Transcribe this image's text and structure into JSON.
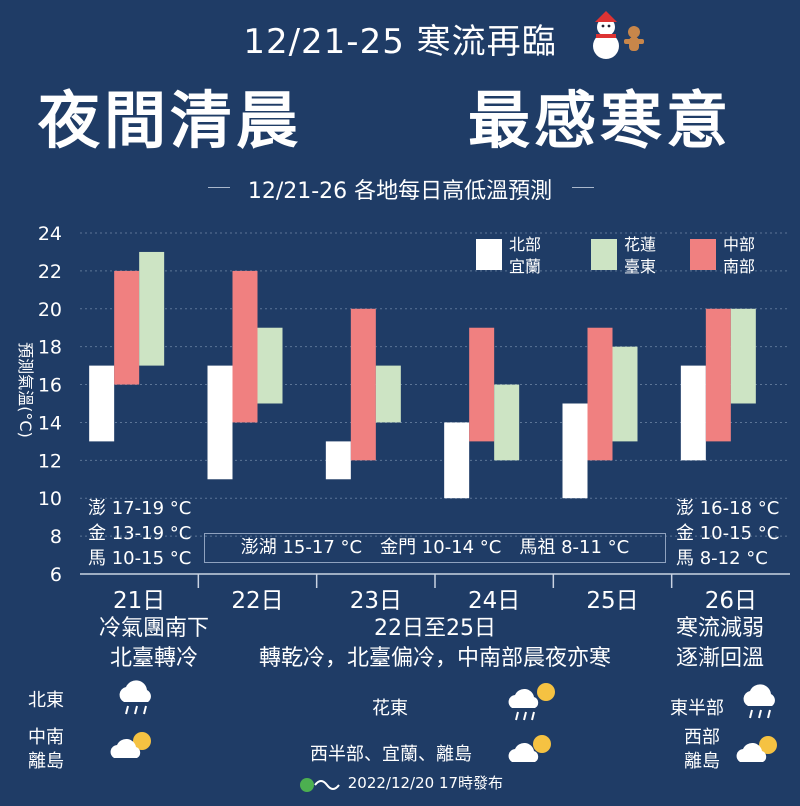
{
  "header": {
    "title": "12/21-25 寒流再臨",
    "headline_left": "夜間清晨",
    "headline_right": "最感寒意"
  },
  "chart_data": {
    "type": "bar",
    "title": "12/21-26 各地每日高低溫預測",
    "ylabel": "預測氣溫(°C)",
    "ylim": [
      6,
      24
    ],
    "yticks": [
      6,
      8,
      10,
      12,
      14,
      16,
      18,
      20,
      22,
      24
    ],
    "categories": [
      "21日",
      "22日",
      "23日",
      "24日",
      "25日",
      "26日"
    ],
    "series": [
      {
        "name": "北部宜蘭",
        "color": "#ffffff",
        "low": [
          13,
          11,
          11,
          10,
          10,
          12
        ],
        "high": [
          17,
          17,
          13,
          14,
          15,
          17
        ]
      },
      {
        "name": "中部南部",
        "color": "#f08080",
        "low": [
          16,
          14,
          12,
          13,
          12,
          13
        ],
        "high": [
          22,
          22,
          20,
          19,
          19,
          20
        ]
      },
      {
        "name": "花蓮臺東",
        "color": "#cde4c4",
        "low": [
          17,
          15,
          14,
          12,
          13,
          15
        ],
        "high": [
          23,
          19,
          17,
          16,
          18,
          20
        ]
      }
    ],
    "legend": [
      {
        "line1": "北部",
        "line2": "宜蘭",
        "color": "#ffffff"
      },
      {
        "line1": "花蓮",
        "line2": "臺東",
        "color": "#cde4c4"
      },
      {
        "line1": "中部",
        "line2": "南部",
        "color": "#f08080"
      }
    ],
    "legend_position": "top-right",
    "grid": true
  },
  "island_notes": {
    "day21": [
      "澎 17-19 °C",
      "金 13-19 °C",
      "馬 10-15 °C"
    ],
    "middle": "澎湖 15-17 °C　金門 10-14 °C　馬祖 8-11 °C",
    "day26": [
      "澎 16-18 °C",
      "金 10-15 °C",
      "馬 8-12 °C"
    ]
  },
  "periods": {
    "p1_line1": "冷氣團南下",
    "p1_line2": "北臺轉冷",
    "p2_line1": "22日至25日",
    "p2_line2": "轉乾冷，北臺偏冷，中南部晨夜亦寒",
    "p3_line1": "寒流減弱",
    "p3_line2": "逐漸回溫"
  },
  "weather": {
    "r_north_east": "北東",
    "r_central_south_1": "中南",
    "r_central_south_2": "離島",
    "r_hualien_taitung": "花東",
    "r_west_islands": "西半部、宜蘭、離島",
    "r_east_half": "東半部",
    "r_west_islands_1": "西部",
    "r_west_islands_2": "離島"
  },
  "footer": {
    "published": "2022/12/20 17時發布"
  }
}
